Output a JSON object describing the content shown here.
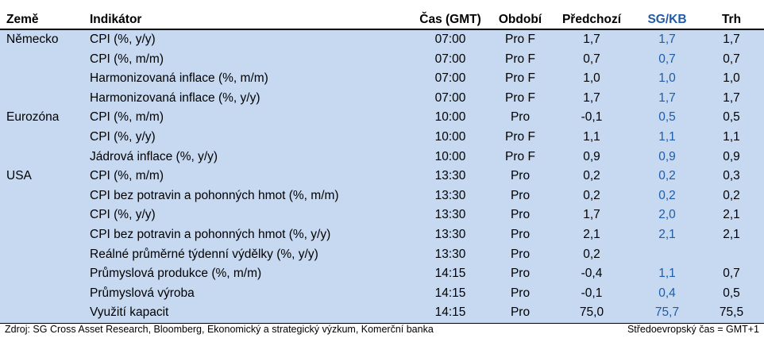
{
  "table": {
    "header": [
      "Země",
      "Indikátor",
      "Čas (GMT)",
      "Období",
      "Předchozí",
      "SG/KB",
      "Trh"
    ],
    "rows": [
      [
        "Německo",
        "CPI (%, y/y)",
        "07:00",
        "Pro F",
        "1,7",
        "1,7",
        "1,7"
      ],
      [
        null,
        "CPI (%, m/m)",
        "07:00",
        "Pro F",
        "0,7",
        "0,7",
        "0,7"
      ],
      [
        null,
        "Harmonizovaná inflace (%, m/m)",
        "07:00",
        "Pro F",
        "1,0",
        "1,0",
        "1,0"
      ],
      [
        null,
        "Harmonizovaná inflace (%, y/y)",
        "07:00",
        "Pro F",
        "1,7",
        "1,7",
        "1,7"
      ],
      [
        "Eurozóna",
        "CPI (%, m/m)",
        "10:00",
        "Pro",
        "-0,1",
        "0,5",
        "0,5"
      ],
      [
        null,
        "CPI (%, y/y)",
        "10:00",
        "Pro F",
        "1,1",
        "1,1",
        "1,1"
      ],
      [
        null,
        "Jádrová inflace (%, y/y)",
        "10:00",
        "Pro F",
        "0,9",
        "0,9",
        "0,9"
      ],
      [
        "USA",
        "CPI (%, m/m)",
        "13:30",
        "Pro",
        "0,2",
        "0,2",
        "0,3"
      ],
      [
        null,
        "CPI bez potravin a pohonných hmot (%, m/m)",
        "13:30",
        "Pro",
        "0,2",
        "0,2",
        "0,2"
      ],
      [
        null,
        "CPI (%, y/y)",
        "13:30",
        "Pro",
        "1,7",
        "2,0",
        "2,1"
      ],
      [
        null,
        "CPI bez potravin a pohonných hmot (%, y/y)",
        "13:30",
        "Pro",
        "2,1",
        "2,1",
        "2,1"
      ],
      [
        null,
        "Reálné průměrné týdenní výdělky (%, y/y)",
        "13:30",
        "Pro",
        "0,2",
        null,
        null
      ],
      [
        null,
        "Průmyslová produkce (%, m/m)",
        "14:15",
        "Pro",
        "-0,4",
        "1,1",
        "0,7"
      ],
      [
        null,
        "Průmyslová výroba",
        "14:15",
        "Pro",
        "-0,1",
        "0,4",
        "0,5"
      ],
      [
        null,
        "Využití kapacit",
        "14:15",
        "Pro",
        "75,0",
        "75,7",
        "75,5"
      ]
    ],
    "footer": {
      "source": "Zdroj: SG Cross Asset Research, Bloomberg, Ekonomický a strategický výzkum, Komerční banka",
      "note": "Středoevropský čas = GMT+1"
    }
  }
}
